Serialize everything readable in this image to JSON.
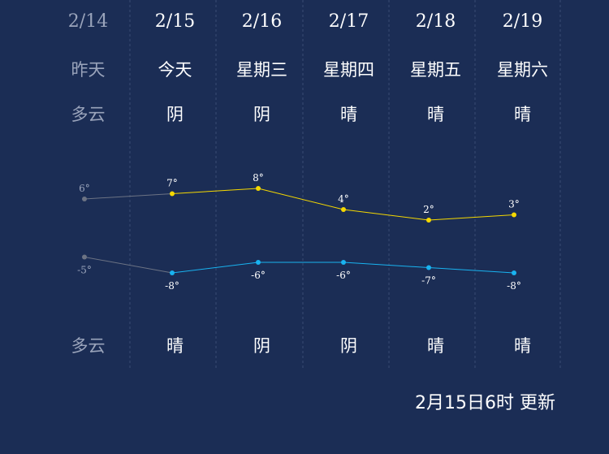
{
  "forecast": {
    "days": [
      {
        "date": "2/14",
        "day": "昨天",
        "weather_day": "多云",
        "weather_night": "多云",
        "past": true
      },
      {
        "date": "2/15",
        "day": "今天",
        "weather_day": "阴",
        "weather_night": "晴",
        "past": false
      },
      {
        "date": "2/16",
        "day": "星期三",
        "weather_day": "阴",
        "weather_night": "阴",
        "past": false
      },
      {
        "date": "2/17",
        "day": "星期四",
        "weather_day": "晴",
        "weather_night": "阴",
        "past": false
      },
      {
        "date": "2/18",
        "day": "星期五",
        "weather_day": "晴",
        "weather_night": "晴",
        "past": false
      },
      {
        "date": "2/19",
        "day": "星期六",
        "weather_day": "晴",
        "weather_night": "晴",
        "past": false
      }
    ],
    "updated": "2月15日6时 更新"
  },
  "chart_data": {
    "type": "line",
    "categories": [
      "2/14",
      "2/15",
      "2/16",
      "2/17",
      "2/18",
      "2/19"
    ],
    "series": [
      {
        "values": [
          6,
          7,
          8,
          4,
          2,
          3
        ],
        "labels": [
          "6°",
          "7°",
          "8°",
          "4°",
          "2°",
          "3°"
        ],
        "color": "#f5d800"
      },
      {
        "values": [
          -5,
          -8,
          -6,
          -6,
          -7,
          -8
        ],
        "labels": [
          "-5°",
          "-8°",
          "-6°",
          "-6°",
          "-7°",
          "-8°"
        ],
        "color": "#19b3f0"
      }
    ],
    "past_color": "#6c7384"
  },
  "colors": {
    "background": "#1b2d55",
    "text": "#ffffff",
    "past_text": "#9aa4bb",
    "divider": "#3a4b74"
  }
}
